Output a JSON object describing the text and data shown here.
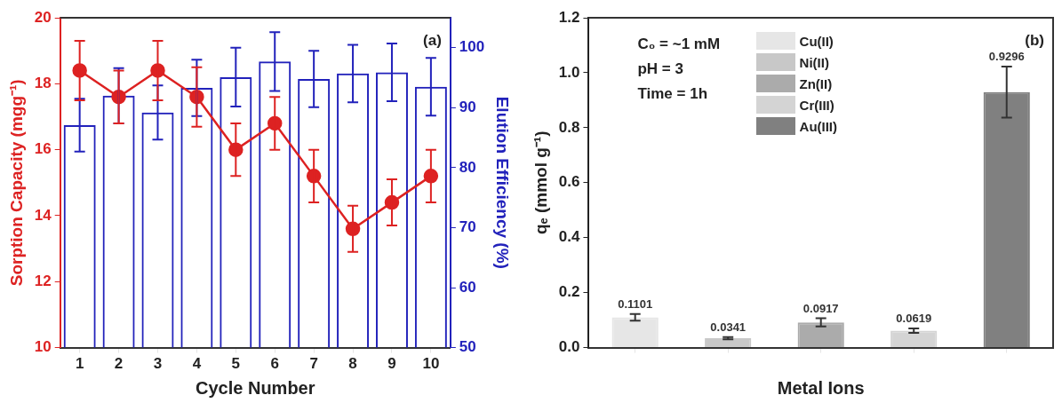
{
  "chart_data": [
    {
      "type": "bar",
      "xlabel": "Cycle Number",
      "ylabel": "Sorption Capacity (mgg⁻¹)",
      "y2label": "Elution Efficiency (%)",
      "categories": [
        "1",
        "2",
        "3",
        "4",
        "5",
        "6",
        "7",
        "8",
        "9",
        "10"
      ],
      "series": [
        {
          "axis": "y2",
          "color": "#2222bb",
          "values": [
            87.1,
            92.0,
            89.2,
            93.3,
            95.1,
            97.7,
            94.8,
            95.7,
            95.9,
            93.5
          ],
          "errors": [
            4.4,
            4.6,
            4.5,
            4.7,
            4.9,
            4.9,
            4.7,
            4.8,
            4.8,
            4.8
          ]
        },
        {
          "type": "line",
          "color": "#dd2222",
          "values": [
            18.4,
            17.6,
            18.4,
            17.6,
            16.0,
            16.8,
            15.2,
            13.6,
            14.4,
            15.2
          ],
          "errors": [
            0.9,
            0.8,
            0.9,
            0.9,
            0.8,
            0.8,
            0.8,
            0.7,
            0.7,
            0.8
          ]
        }
      ],
      "ylim": [
        10,
        20
      ],
      "yticks": [
        10,
        12,
        14,
        16,
        18,
        20
      ],
      "y2lim": [
        50,
        105
      ],
      "y2ticks": [
        50,
        60,
        70,
        80,
        90,
        100
      ],
      "marker": "circle",
      "line_style": "solid",
      "grid": false,
      "legend": false,
      "annotations": [
        "(a)"
      ]
    },
    {
      "type": "bar",
      "xlabel": "Metal Ions",
      "ylabel": "qₑ (mmol g⁻¹)",
      "categories": [
        null,
        null,
        null,
        null,
        null
      ],
      "series": [
        {
          "name": "Cu(II)",
          "color": "#e6e6e6",
          "values": [
            0.1101,
            null,
            null,
            null,
            null
          ],
          "errors": [
            0.012,
            null,
            null,
            null,
            null
          ]
        },
        {
          "name": "Ni(II)",
          "color": "#c8c8c8",
          "values": [
            null,
            0.0341,
            null,
            null,
            null
          ],
          "errors": [
            null,
            0.004,
            null,
            null,
            null
          ]
        },
        {
          "name": "Zn(II)",
          "color": "#ababab",
          "values": [
            null,
            null,
            0.0917,
            null,
            null
          ],
          "errors": [
            null,
            null,
            0.015,
            null,
            null
          ]
        },
        {
          "name": "Cr(III)",
          "color": "#d4d4d4",
          "values": [
            null,
            null,
            null,
            0.0619,
            null
          ],
          "errors": [
            null,
            null,
            null,
            0.008,
            null
          ]
        },
        {
          "name": "Au(III)",
          "color": "#808080",
          "values": [
            null,
            null,
            null,
            null,
            0.9296
          ],
          "errors": [
            null,
            null,
            null,
            null,
            0.093
          ]
        }
      ],
      "ylim": [
        0,
        1.2
      ],
      "yticks": [
        {
          "value": 0,
          "label": "0.0"
        },
        {
          "value": 0.2,
          "label": "0.2"
        },
        {
          "value": 0.4,
          "label": "0.4"
        },
        {
          "value": 0.6,
          "label": "0.6"
        },
        {
          "value": 0.8,
          "label": "0.8"
        },
        {
          "value": 1,
          "label": "1.0"
        },
        {
          "value": 1.2,
          "label": "1.2"
        }
      ],
      "data_labels": true,
      "grid": false,
      "legend": "top",
      "annotations": [
        "(b)",
        "C₀ = ~1 mM",
        "pH = 3",
        "Time = 1h"
      ]
    }
  ]
}
